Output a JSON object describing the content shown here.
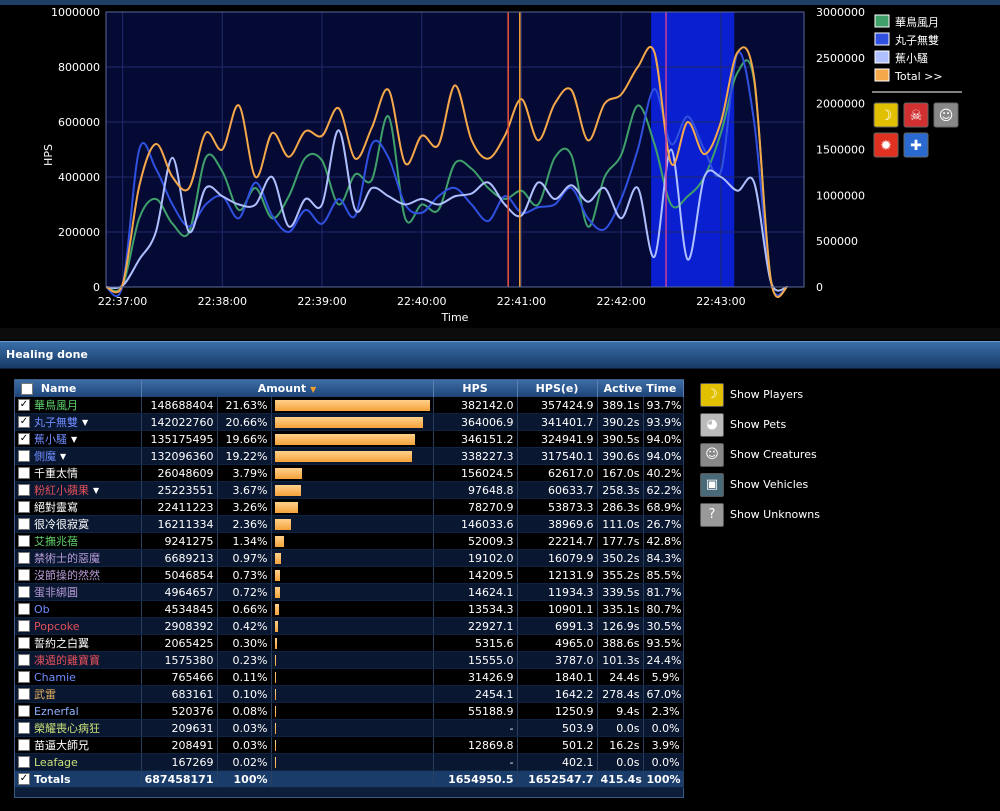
{
  "chart_data": {
    "type": "line",
    "xlabel": "Time",
    "ylabel": "HPS",
    "x_ticks": [
      "22:37:00",
      "22:38:00",
      "22:39:00",
      "22:40:00",
      "22:41:00",
      "22:42:00",
      "22:43:00"
    ],
    "left_ticks": [
      "0",
      "200000",
      "400000",
      "600000",
      "800000",
      "1000000"
    ],
    "right_ticks": [
      "0",
      "500000",
      "1000000",
      "1500000",
      "2000000",
      "2500000",
      "3000000"
    ],
    "ylim_left": [
      0,
      1000000
    ],
    "ylim_right": [
      0,
      3000000
    ],
    "x_range_seconds": [
      -10,
      410
    ],
    "x_tick_seconds": [
      0,
      60,
      120,
      180,
      240,
      300,
      360
    ],
    "highlight_range_seconds": [
      318,
      368
    ],
    "markers_seconds": [
      {
        "t": 232,
        "color": "#e0503a"
      },
      {
        "t": 239,
        "color": "#f0a030"
      },
      {
        "t": 327,
        "color": "#c040a0"
      }
    ],
    "series": [
      {
        "name": "華鳥風月",
        "axis": "left",
        "color": "#3fa06a",
        "x": [
          -10,
          0,
          10,
          20,
          30,
          40,
          50,
          60,
          70,
          80,
          90,
          100,
          110,
          120,
          130,
          140,
          150,
          160,
          170,
          180,
          190,
          200,
          210,
          220,
          230,
          240,
          250,
          260,
          270,
          280,
          290,
          300,
          310,
          320,
          330,
          340,
          350,
          360,
          370,
          380,
          390,
          400
        ],
        "values": [
          0,
          5000,
          250000,
          320000,
          230000,
          200000,
          470000,
          420000,
          280000,
          360000,
          250000,
          330000,
          470000,
          460000,
          300000,
          410000,
          390000,
          620000,
          250000,
          300000,
          280000,
          450000,
          430000,
          360000,
          320000,
          350000,
          300000,
          470000,
          480000,
          220000,
          400000,
          480000,
          660000,
          520000,
          300000,
          330000,
          400000,
          560000,
          780000,
          750000,
          30000,
          0
        ]
      },
      {
        "name": "丸子無雙",
        "axis": "left",
        "color": "#3050e0",
        "x": [
          -10,
          0,
          10,
          20,
          30,
          40,
          50,
          60,
          70,
          80,
          90,
          100,
          110,
          120,
          130,
          140,
          150,
          160,
          170,
          180,
          190,
          200,
          210,
          220,
          230,
          240,
          250,
          260,
          270,
          280,
          290,
          300,
          310,
          320,
          330,
          340,
          350,
          360,
          370,
          380,
          390,
          400
        ],
        "values": [
          0,
          5000,
          500000,
          430000,
          300000,
          220000,
          300000,
          330000,
          250000,
          380000,
          260000,
          200000,
          280000,
          230000,
          320000,
          260000,
          520000,
          470000,
          300000,
          270000,
          330000,
          360000,
          300000,
          240000,
          330000,
          270000,
          290000,
          300000,
          360000,
          250000,
          210000,
          320000,
          500000,
          720000,
          520000,
          620000,
          500000,
          420000,
          850000,
          600000,
          20000,
          0
        ]
      },
      {
        "name": "蕉小騷",
        "axis": "left",
        "color": "#b0c0ff",
        "x": [
          -10,
          0,
          10,
          20,
          30,
          40,
          50,
          60,
          70,
          80,
          90,
          100,
          110,
          120,
          130,
          140,
          150,
          160,
          170,
          180,
          190,
          200,
          210,
          220,
          230,
          240,
          250,
          260,
          270,
          280,
          290,
          300,
          310,
          320,
          330,
          340,
          350,
          360,
          370,
          380,
          390,
          400
        ],
        "values": [
          0,
          5000,
          100000,
          200000,
          470000,
          200000,
          360000,
          330000,
          300000,
          300000,
          400000,
          220000,
          320000,
          300000,
          570000,
          280000,
          360000,
          330000,
          300000,
          320000,
          300000,
          330000,
          340000,
          380000,
          300000,
          260000,
          380000,
          320000,
          370000,
          310000,
          360000,
          250000,
          360000,
          110000,
          500000,
          100000,
          400000,
          400000,
          350000,
          380000,
          20000,
          0
        ]
      },
      {
        "name": "Total >>",
        "axis": "right",
        "color": "#f5a84a",
        "x": [
          -10,
          0,
          10,
          20,
          30,
          40,
          50,
          60,
          70,
          80,
          90,
          100,
          110,
          120,
          130,
          140,
          150,
          160,
          170,
          180,
          190,
          200,
          210,
          220,
          230,
          240,
          250,
          260,
          270,
          280,
          290,
          300,
          310,
          320,
          330,
          340,
          350,
          360,
          370,
          380,
          390,
          400
        ],
        "values": [
          0,
          30000,
          1100000,
          1560000,
          1200000,
          1080000,
          1680000,
          1500000,
          1980000,
          1200000,
          1680000,
          1420000,
          1700000,
          1650000,
          1950000,
          1400000,
          1740000,
          2150000,
          1350000,
          1650000,
          1550000,
          2200000,
          1600000,
          1400000,
          1650000,
          2050000,
          1600000,
          2000000,
          2150000,
          1600000,
          2000000,
          2100000,
          2400000,
          2560000,
          1350000,
          1800000,
          1450000,
          1800000,
          2560000,
          2280000,
          80000,
          0
        ]
      }
    ],
    "legend_title_toggle": "Total >>"
  },
  "legend": {
    "items": [
      {
        "label": "華鳥風月",
        "color": "#3fa06a"
      },
      {
        "label": "丸子無雙",
        "color": "#3050e0"
      },
      {
        "label": "蕉小騷",
        "color": "#b0c0ff"
      },
      {
        "label": "Total >>",
        "color": "#f5a84a"
      }
    ]
  },
  "section": {
    "title": "Healing done"
  },
  "table": {
    "headers": {
      "name": "Name",
      "amount": "Amount",
      "hps": "HPS",
      "hpse": "HPS(e)",
      "active": "Active Time"
    },
    "rows": [
      {
        "name": "華鳥風月",
        "color": "#5fd06a",
        "checked": true,
        "arrow": false,
        "amount": "148688404",
        "pct": "21.63%",
        "hps": "382142.0",
        "hpse": "357424.9",
        "t": "389.1s",
        "tp": "93.7%",
        "frac": 1.0
      },
      {
        "name": "丸子無雙",
        "color": "#6f8cff",
        "checked": true,
        "arrow": true,
        "amount": "142022760",
        "pct": "20.66%",
        "hps": "364006.9",
        "hpse": "341401.7",
        "t": "390.2s",
        "tp": "93.9%",
        "frac": 0.955
      },
      {
        "name": "蕉小騷",
        "color": "#6f8cff",
        "checked": true,
        "arrow": true,
        "amount": "135175495",
        "pct": "19.66%",
        "hps": "346151.2",
        "hpse": "324941.9",
        "t": "390.5s",
        "tp": "94.0%",
        "frac": 0.909
      },
      {
        "name": "側魔",
        "color": "#6f8cff",
        "checked": false,
        "arrow": true,
        "amount": "132096360",
        "pct": "19.22%",
        "hps": "338227.3",
        "hpse": "317540.1",
        "t": "390.6s",
        "tp": "94.0%",
        "frac": 0.888
      },
      {
        "name": "千重太情",
        "color": "#ffffff",
        "checked": false,
        "arrow": false,
        "amount": "26048609",
        "pct": "3.79%",
        "hps": "156024.5",
        "hpse": "62617.0",
        "t": "167.0s",
        "tp": "40.2%",
        "frac": 0.175
      },
      {
        "name": "粉紅小蘋果",
        "color": "#e2505a",
        "checked": false,
        "arrow": true,
        "amount": "25223551",
        "pct": "3.67%",
        "hps": "97648.8",
        "hpse": "60633.7",
        "t": "258.3s",
        "tp": "62.2%",
        "frac": 0.17
      },
      {
        "name": "絕對靈寫",
        "color": "#ffffff",
        "checked": false,
        "arrow": false,
        "amount": "22411223",
        "pct": "3.26%",
        "hps": "78270.9",
        "hpse": "53873.3",
        "t": "286.3s",
        "tp": "68.9%",
        "frac": 0.151
      },
      {
        "name": "很冷很寂寞",
        "color": "#ffffff",
        "checked": false,
        "arrow": false,
        "amount": "16211334",
        "pct": "2.36%",
        "hps": "146033.6",
        "hpse": "38969.6",
        "t": "111.0s",
        "tp": "26.7%",
        "frac": 0.109
      },
      {
        "name": "艾撫兆蓓",
        "color": "#5fd06a",
        "checked": false,
        "arrow": false,
        "amount": "9241275",
        "pct": "1.34%",
        "hps": "52009.3",
        "hpse": "22214.7",
        "t": "177.7s",
        "tp": "42.8%",
        "frac": 0.062
      },
      {
        "name": "禁術士的惡魔",
        "color": "#b79cd8",
        "checked": false,
        "arrow": false,
        "amount": "6689213",
        "pct": "0.97%",
        "hps": "19102.0",
        "hpse": "16079.9",
        "t": "350.2s",
        "tp": "84.3%",
        "frac": 0.045
      },
      {
        "name": "沒節操的然然",
        "color": "#b79cd8",
        "checked": false,
        "arrow": false,
        "amount": "5046854",
        "pct": "0.73%",
        "hps": "14209.5",
        "hpse": "12131.9",
        "t": "355.2s",
        "tp": "85.5%",
        "frac": 0.034
      },
      {
        "name": "蛋非綁圓",
        "color": "#b79cd8",
        "checked": false,
        "arrow": false,
        "amount": "4964657",
        "pct": "0.72%",
        "hps": "14624.1",
        "hpse": "11934.3",
        "t": "339.5s",
        "tp": "81.7%",
        "frac": 0.033
      },
      {
        "name": "Ob",
        "color": "#6f8cff",
        "checked": false,
        "arrow": false,
        "amount": "4534845",
        "pct": "0.66%",
        "hps": "13534.3",
        "hpse": "10901.1",
        "t": "335.1s",
        "tp": "80.7%",
        "frac": 0.03
      },
      {
        "name": "Popcoke",
        "color": "#e2505a",
        "checked": false,
        "arrow": false,
        "amount": "2908392",
        "pct": "0.42%",
        "hps": "22927.1",
        "hpse": "6991.3",
        "t": "126.9s",
        "tp": "30.5%",
        "frac": 0.02
      },
      {
        "name": "誓約之白翼",
        "color": "#ffffff",
        "checked": false,
        "arrow": false,
        "amount": "2065425",
        "pct": "0.30%",
        "hps": "5315.6",
        "hpse": "4965.0",
        "t": "388.6s",
        "tp": "93.5%",
        "frac": 0.014
      },
      {
        "name": "凍遁的雞寶寶",
        "color": "#e2505a",
        "checked": false,
        "arrow": false,
        "amount": "1575380",
        "pct": "0.23%",
        "hps": "15555.0",
        "hpse": "3787.0",
        "t": "101.3s",
        "tp": "24.4%",
        "frac": 0.011
      },
      {
        "name": "Chamie",
        "color": "#6f8cff",
        "checked": false,
        "arrow": false,
        "amount": "765466",
        "pct": "0.11%",
        "hps": "31426.9",
        "hpse": "1840.1",
        "t": "24.4s",
        "tp": "5.9%",
        "frac": 0.006
      },
      {
        "name": "武雷",
        "color": "#e8b060",
        "checked": false,
        "arrow": false,
        "amount": "683161",
        "pct": "0.10%",
        "hps": "2454.1",
        "hpse": "1642.2",
        "t": "278.4s",
        "tp": "67.0%",
        "frac": 0.005
      },
      {
        "name": "Eznerfal",
        "color": "#8fb3ff",
        "checked": false,
        "arrow": false,
        "amount": "520376",
        "pct": "0.08%",
        "hps": "55188.9",
        "hpse": "1250.9",
        "t": "9.4s",
        "tp": "2.3%",
        "frac": 0.004
      },
      {
        "name": "榮耀喪心病狂",
        "color": "#c8e07a",
        "checked": false,
        "arrow": false,
        "amount": "209631",
        "pct": "0.03%",
        "hps": "-",
        "hpse": "503.9",
        "t": "0.0s",
        "tp": "0.0%",
        "frac": 0.002
      },
      {
        "name": "苗逼大師兄",
        "color": "#ffffff",
        "checked": false,
        "arrow": false,
        "amount": "208491",
        "pct": "0.03%",
        "hps": "12869.8",
        "hpse": "501.2",
        "t": "16.2s",
        "tp": "3.9%",
        "frac": 0.002
      },
      {
        "name": "Leafage",
        "color": "#c8e07a",
        "checked": false,
        "arrow": false,
        "amount": "167269",
        "pct": "0.02%",
        "hps": "-",
        "hpse": "402.1",
        "t": "0.0s",
        "tp": "0.0%",
        "frac": 0.001
      }
    ],
    "totals": {
      "name": "Totals",
      "amount": "687458171",
      "pct": "100%",
      "hps": "1654950.5",
      "hpse": "1652547.7",
      "t": "415.4s",
      "tp": "100%"
    }
  },
  "side_options": [
    {
      "label": "Show Players",
      "icon": "player-icon",
      "bg": "#e0c000",
      "glyph": "☽"
    },
    {
      "label": "Show Pets",
      "icon": "pet-icon",
      "bg": "#bbbbbb",
      "glyph": "◕"
    },
    {
      "label": "Show Creatures",
      "icon": "creature-icon",
      "bg": "#888888",
      "glyph": "☺"
    },
    {
      "label": "Show Vehicles",
      "icon": "vehicle-icon",
      "bg": "#4a6a7a",
      "glyph": "▣"
    },
    {
      "label": "Show Unknowns",
      "icon": "unknown-icon",
      "bg": "#999999",
      "glyph": "?"
    }
  ],
  "legend_icons": [
    {
      "icon": "players-icon",
      "bg": "#e0c000",
      "glyph": "☽"
    },
    {
      "icon": "skull-icon",
      "bg": "#d03030",
      "glyph": "☠"
    },
    {
      "icon": "creature-icon",
      "bg": "#888888",
      "glyph": "☺"
    },
    {
      "icon": "fire-icon",
      "bg": "#e03020",
      "glyph": "✹"
    },
    {
      "icon": "plus-icon",
      "bg": "#2a6ad0",
      "glyph": "✚"
    }
  ]
}
